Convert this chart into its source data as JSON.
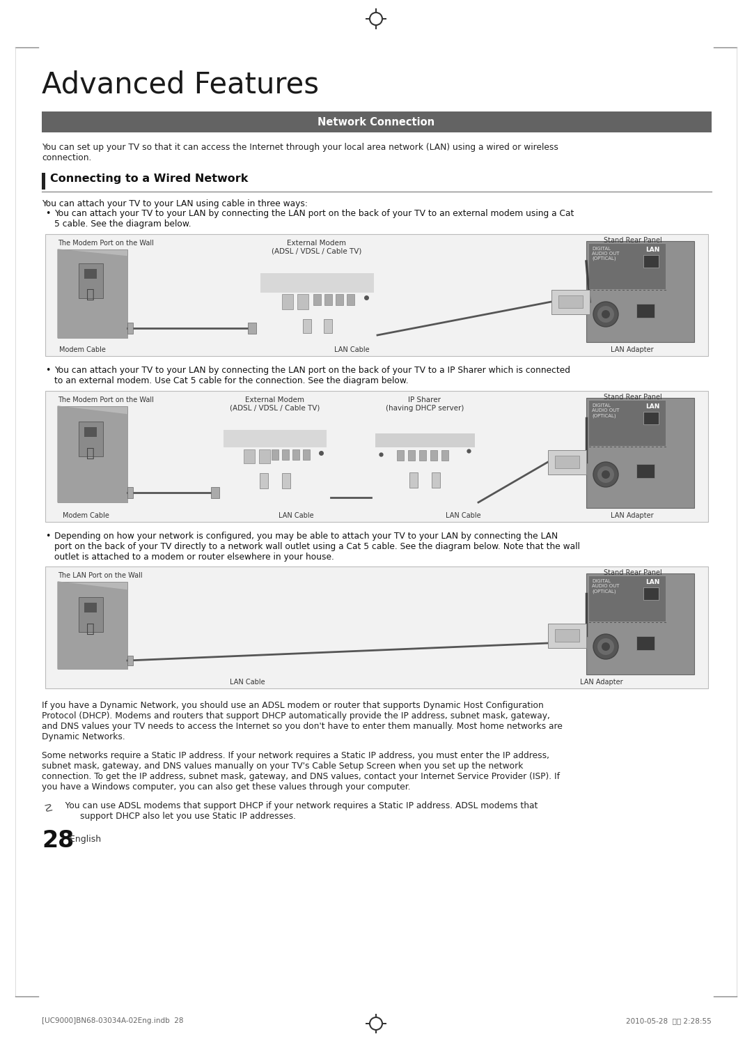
{
  "page_bg": "#ffffff",
  "page_title": "Advanced Features",
  "header_bar_color": "#636363",
  "header_bar_text": "Network Connection",
  "header_bar_text_color": "#ffffff",
  "section_title": "Connecting to a Wired Network",
  "section_bar_color": "#222222",
  "intro_text": "You can set up your TV so that it can access the Internet through your local area network (LAN) using a wired or wireless\nconnection.",
  "body_intro": "You can attach your TV to your LAN using cable in three ways:",
  "bullet1_text": "You can attach your TV to your LAN by connecting the LAN port on the back of your TV to an external modem using a Cat\n5 cable. See the diagram below.",
  "bullet2_text": "You can attach your TV to your LAN by connecting the LAN port on the back of your TV to a IP Sharer which is connected\nto an external modem. Use Cat 5 cable for the connection. See the diagram below.",
  "bullet3_text": "Depending on how your network is configured, you may be able to attach your TV to your LAN by connecting the LAN\nport on the back of your TV directly to a network wall outlet using a Cat 5 cable. See the diagram below. Note that the wall\noutlet is attached to a modem or router elsewhere in your house.",
  "para1_text": "If you have a Dynamic Network, you should use an ADSL modem or router that supports Dynamic Host Configuration\nProtocol (DHCP). Modems and routers that support DHCP automatically provide the IP address, subnet mask, gateway,\nand DNS values your TV needs to access the Internet so you don't have to enter them manually. Most home networks are\nDynamic Networks.",
  "para2_text": "Some networks require a Static IP address. If your network requires a Static IP address, you must enter the IP address,\nsubnet mask, gateway, and DNS values manually on your TV's Cable Setup Screen when you set up the network\nconnection. To get the IP address, subnet mask, gateway, and DNS values, contact your Internet Service Provider (ISP). If\nyou have a Windows computer, you can also get these values through your computer.",
  "note_text1": "   You can use ADSL modems that support DHCP if your network requires a Static IP address. ADSL modems that",
  "note_text2": "support DHCP also let you use Static IP addresses.",
  "page_number": "28",
  "page_number_suffix": " English",
  "footer_left": "[UC9000]BN68-03034A-02Eng.indb  28",
  "footer_right": "2010-05-28  오후 2:28:55",
  "d1_wall_label": "The Modem Port on the Wall",
  "d1_modem_label": "External Modem\n(ADSL / VDSL / Cable TV)",
  "d1_stand_label": "Stand Rear Panel",
  "d1_modem_cable": "Modem Cable",
  "d1_lan_cable": "LAN Cable",
  "d1_lan_adapter": "LAN Adapter",
  "d2_wall_label": "The Modem Port on the Wall",
  "d2_modem_label": "External Modem\n(ADSL / VDSL / Cable TV)",
  "d2_sharer_label": "IP Sharer\n(having DHCP server)",
  "d2_stand_label": "Stand Rear Panel",
  "d2_modem_cable": "Modem Cable",
  "d2_lan_cable1": "LAN Cable",
  "d2_lan_cable2": "LAN Cable",
  "d2_lan_adapter": "LAN Adapter",
  "d3_wall_label": "The LAN Port on the Wall",
  "d3_stand_label": "Stand Rear Panel",
  "d3_lan_cable": "LAN Cable",
  "d3_lan_adapter": "LAN Adapter",
  "digital_label": "DIGITAL\nAUDIO OUT\n(OPTICAL)",
  "lan_label": "LAN"
}
